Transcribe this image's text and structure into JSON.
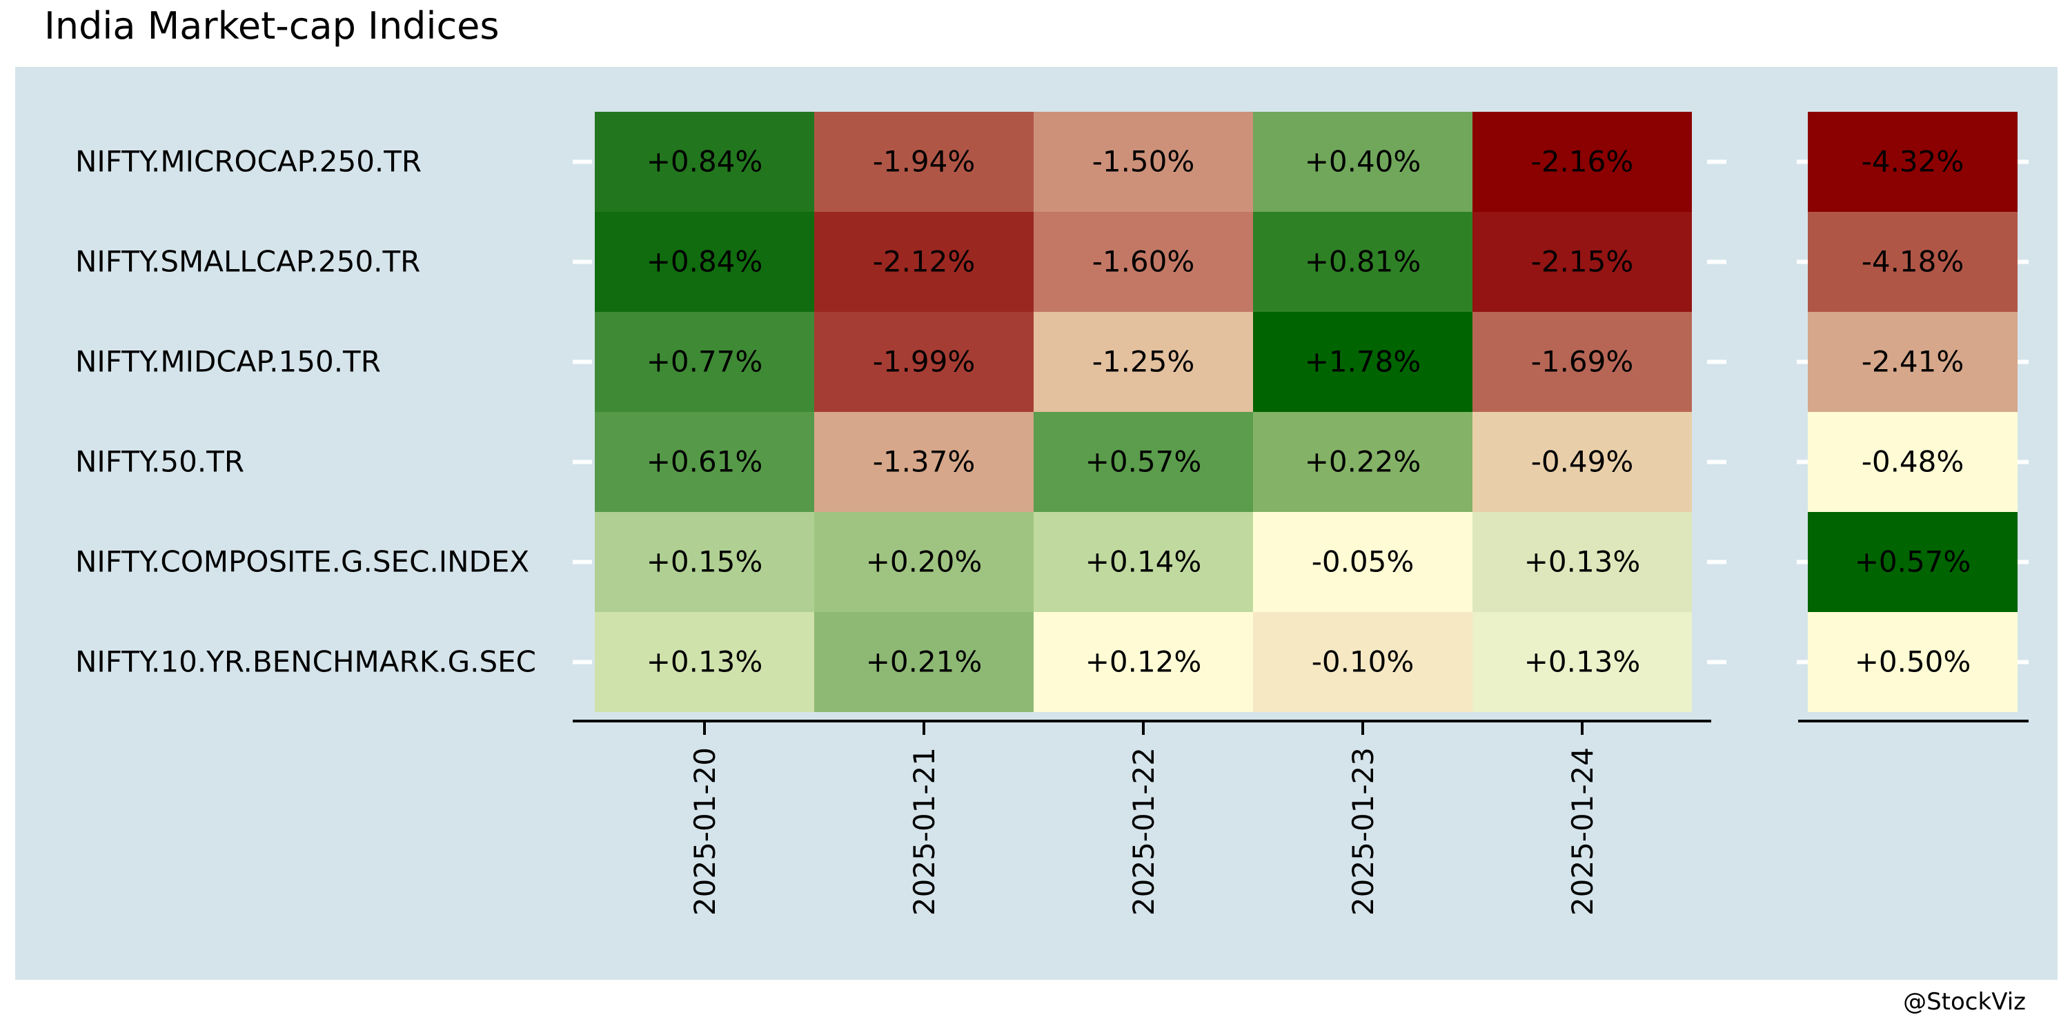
{
  "title": "India Market-cap Indices",
  "credit": "@StockViz",
  "chart_data": {
    "type": "heatmap",
    "rows": [
      "NIFTY.MICROCAP.250.TR",
      "NIFTY.SMALLCAP.250.TR",
      "NIFTY.MIDCAP.150.TR",
      "NIFTY.50.TR",
      "NIFTY.COMPOSITE.G.SEC.INDEX",
      "NIFTY.10.YR.BENCHMARK.G.SEC"
    ],
    "columns": [
      "2025-01-20",
      "2025-01-21",
      "2025-01-22",
      "2025-01-23",
      "2025-01-24"
    ],
    "values": [
      [
        0.84,
        -1.94,
        -1.5,
        0.4,
        -2.16
      ],
      [
        0.84,
        -2.12,
        -1.6,
        0.81,
        -2.15
      ],
      [
        0.77,
        -1.99,
        -1.25,
        1.78,
        -1.69
      ],
      [
        0.61,
        -1.37,
        0.57,
        0.22,
        -0.49
      ],
      [
        0.15,
        0.2,
        0.14,
        -0.05,
        0.13
      ],
      [
        0.13,
        0.21,
        0.12,
        -0.1,
        0.13
      ]
    ],
    "cell_colors": [
      [
        "#22761d",
        "#b05647",
        "#cd917a",
        "#70a75b",
        "#8b0000"
      ],
      [
        "#106c0e",
        "#9a2720",
        "#c27865",
        "#2f8126",
        "#931413"
      ],
      [
        "#3f8a35",
        "#a63d34",
        "#e3c09e",
        "#006400",
        "#b76656"
      ],
      [
        "#569a49",
        "#d6a78a",
        "#5b9d4c",
        "#84b267",
        "#e9cfa9"
      ],
      [
        "#b0d093",
        "#9fc482",
        "#c0d99f",
        "#fffcd5",
        "#dee7bb"
      ],
      [
        "#d0e2ac",
        "#8eb975",
        "#fffcd5",
        "#f5e8c3",
        "#ebf1c9"
      ]
    ],
    "summary_values": [
      -4.32,
      -4.18,
      -2.41,
      -0.48,
      0.57,
      0.5
    ],
    "summary_colors": [
      "#8b0000",
      "#b05647",
      "#d6a78a",
      "#fffcd5",
      "#006400",
      "#fffcd5"
    ],
    "color_scale": {
      "low": "#8b0000",
      "mid": "#fffacd",
      "high": "#006400"
    }
  }
}
